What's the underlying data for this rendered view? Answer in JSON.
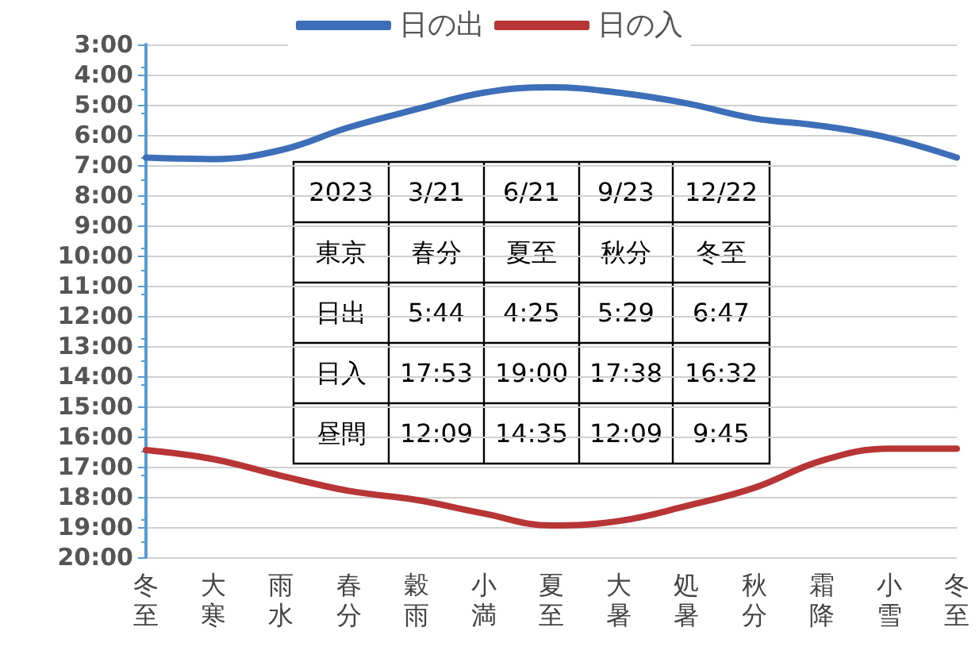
{
  "chart_data": {
    "type": "line",
    "categories": [
      "冬至",
      "大寒",
      "雨水",
      "春分",
      "穀雨",
      "小満",
      "夏至",
      "大暑",
      "処暑",
      "秋分",
      "霜降",
      "小雪",
      "冬至"
    ],
    "series": [
      {
        "name": "日の出",
        "color": "#3d6fb8",
        "values": [
          6.75,
          6.8,
          6.5,
          5.75,
          5.15,
          4.6,
          4.42,
          4.6,
          4.95,
          5.45,
          5.7,
          6.1,
          6.75
        ]
      },
      {
        "name": "日の入",
        "color": "#b83535",
        "values": [
          16.45,
          16.75,
          17.3,
          17.8,
          18.1,
          18.55,
          18.95,
          18.8,
          18.3,
          17.7,
          16.8,
          16.4,
          16.4
        ]
      }
    ],
    "ylim": [
      20,
      3
    ],
    "yticks": [
      {
        "value": 3,
        "label": "3:00"
      },
      {
        "value": 4,
        "label": "4:00"
      },
      {
        "value": 5,
        "label": "5:00"
      },
      {
        "value": 6,
        "label": "6:00"
      },
      {
        "value": 7,
        "label": "7:00"
      },
      {
        "value": 8,
        "label": "8:00"
      },
      {
        "value": 9,
        "label": "9:00"
      },
      {
        "value": 10,
        "label": "10:00"
      },
      {
        "value": 11,
        "label": "11:00"
      },
      {
        "value": 12,
        "label": "12:00"
      },
      {
        "value": 13,
        "label": "13:00"
      },
      {
        "value": 14,
        "label": "14:00"
      },
      {
        "value": 15,
        "label": "15:00"
      },
      {
        "value": 16,
        "label": "16:00"
      },
      {
        "value": 17,
        "label": "17:00"
      },
      {
        "value": 18,
        "label": "18:00"
      },
      {
        "value": 19,
        "label": "19:00"
      },
      {
        "value": 20,
        "label": "20:00"
      }
    ],
    "grid": "y",
    "legend": "top",
    "marker": "none",
    "line_style": "solid",
    "annotations": [
      "2023",
      "3/21",
      "6/21",
      "9/23",
      "12/22",
      "東京",
      "春分",
      "夏至",
      "秋分",
      "冬至",
      "日出",
      "5:44",
      "4:25",
      "5:29",
      "6:47",
      "日入",
      "17:53",
      "19:00",
      "17:38",
      "16:32",
      "昼間",
      "12:09",
      "14:35",
      "12:09",
      "9:45"
    ]
  }
}
